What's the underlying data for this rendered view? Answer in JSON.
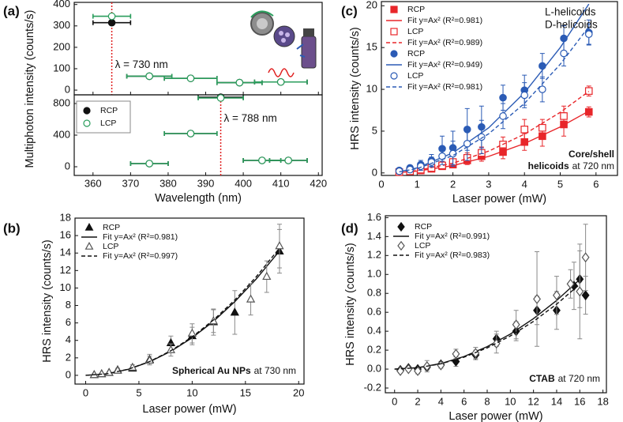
{
  "chart_data": [
    {
      "type": "scatter",
      "panel_label": "(a)",
      "xlabel": "Wavelength (nm)",
      "ylabel": "Multiphoton intensity (counts/s)",
      "xlim": [
        355,
        421
      ],
      "xticks": [
        360,
        370,
        380,
        390,
        400,
        410,
        420
      ],
      "subplots": [
        {
          "ylim": [
            -22,
            410
          ],
          "yticks": [
            0,
            100,
            200,
            300,
            400
          ],
          "annotation": {
            "text": "λ = 730 nm",
            "x": 365,
            "color": "#e02020"
          },
          "series": [
            {
              "color": "#111111",
              "marker": "circle",
              "filled": true,
              "x": [
                365,
                375,
                386,
                399,
                410
              ],
              "values": [
                315,
                65,
                55,
                35,
                38
              ],
              "xerr": [
                5,
                6,
                7,
                6,
                7
              ]
            },
            {
              "color": "#2a9d5c",
              "marker": "circle",
              "filled": false,
              "x": [
                365,
                375,
                386,
                399,
                410
              ],
              "values": [
                345,
                65,
                55,
                35,
                38
              ],
              "xerr": [
                5,
                6,
                7,
                6,
                7
              ]
            }
          ]
        },
        {
          "ylim": [
            -110,
            910
          ],
          "yticks": [
            0,
            400,
            800
          ],
          "legend": "upper left",
          "legend_frame": true,
          "annotation": {
            "text": "λ = 788 nm",
            "x": 394,
            "color": "#e02020"
          },
          "series": [
            {
              "name": "RCP",
              "color": "#111111",
              "marker": "circle",
              "filled": true,
              "x": [
                375,
                386,
                394,
                405,
                412
              ],
              "values": [
                40,
                420,
                880,
                80,
                80
              ],
              "xerr": [
                5,
                7,
                6,
                5,
                5
              ]
            },
            {
              "name": "LCP",
              "color": "#2a9d5c",
              "marker": "circle",
              "filled": false,
              "x": [
                375,
                386,
                394,
                405,
                412
              ],
              "values": [
                40,
                420,
                870,
                80,
                80
              ],
              "xerr": [
                5,
                7,
                6,
                5,
                5
              ]
            }
          ]
        }
      ]
    },
    {
      "type": "scatter",
      "panel_label": "(b)",
      "xlabel": "Laser power (mW)",
      "ylabel": "HRS intensity (counts/s)",
      "xlim": [
        -1,
        20.5
      ],
      "xticks": [
        0,
        5,
        10,
        15,
        20
      ],
      "ylim": [
        -1,
        18
      ],
      "yticks": [
        0,
        2,
        4,
        6,
        8,
        10,
        12,
        14,
        16,
        18
      ],
      "legend": "upper left",
      "errorbar_color": "#8a8a8a",
      "notes": [
        [
          {
            "text": "Spherical Au NPs",
            "bold": true
          },
          {
            "text": "at 730 nm"
          }
        ]
      ],
      "series": [
        {
          "name": "RCP",
          "color": "#111111",
          "marker": "triangle",
          "filled": true,
          "x": [
            0.8,
            1.5,
            2.2,
            3,
            4.4,
            6,
            8,
            10,
            12,
            14,
            18.2
          ],
          "values": [
            0.05,
            0.15,
            0.3,
            0.6,
            0.8,
            1.8,
            3.7,
            4.5,
            6.1,
            7.2,
            14.2
          ],
          "errors": [
            0.1,
            0.1,
            0.1,
            0.2,
            0.2,
            0.6,
            0.8,
            1,
            1.5,
            2.5,
            2.5
          ]
        },
        {
          "name": "Fit y=Ax² (R²=0.981)",
          "color": "#111111",
          "line": "solid",
          "x": [
            0,
            2,
            4,
            6,
            8,
            10,
            12,
            14,
            16,
            18.2
          ],
          "values": [
            0,
            0.17,
            0.69,
            1.55,
            2.75,
            4.3,
            6.19,
            8.43,
            11.01,
            14.24
          ]
        },
        {
          "name": "LCP",
          "color": "#555555",
          "marker": "triangle",
          "filled": false,
          "x": [
            0.8,
            1.5,
            2.2,
            3,
            4.4,
            6,
            8,
            10,
            12,
            15.5,
            17,
            18.2
          ],
          "values": [
            0.05,
            0.15,
            0.3,
            0.55,
            0.9,
            1.7,
            2.9,
            4.8,
            6.2,
            8.7,
            11.3,
            14.8
          ],
          "errors": [
            0.1,
            0.1,
            0.1,
            0.2,
            0.3,
            0.5,
            0.7,
            1.1,
            1.3,
            1.8,
            1.8,
            2.5
          ]
        },
        {
          "name": "Fit y=Ax² (R²=0.997)",
          "color": "#111111",
          "line": "dashed",
          "x": [
            0,
            2,
            4,
            6,
            8,
            10,
            12,
            14,
            16,
            18.2
          ],
          "values": [
            0,
            0.18,
            0.7,
            1.58,
            2.82,
            4.4,
            6.34,
            8.62,
            11.26,
            14.57
          ]
        }
      ]
    },
    {
      "type": "scatter",
      "panel_label": "(c)",
      "xlabel": "Laser power (mW)",
      "ylabel": "HRS intensity (counts/s)",
      "xlim": [
        0,
        6.6
      ],
      "xticks": [
        0,
        1,
        2,
        3,
        4,
        5,
        6
      ],
      "ylim": [
        -0.3,
        20.5
      ],
      "yticks": [
        0,
        5,
        10,
        15,
        20
      ],
      "legend": "upper left",
      "annotations": [
        {
          "text": "L-helicoids",
          "color": "#e8262a"
        },
        {
          "text": "D-helicoids",
          "color": "#2b5bb5"
        }
      ],
      "notes": [
        [
          {
            "text": "Core/shell",
            "bold": true
          }
        ],
        [
          {
            "text": "helicoids",
            "bold": true
          },
          {
            "text": "at 720 nm"
          }
        ]
      ],
      "series": [
        {
          "name": "RCP",
          "color": "#e8262a",
          "marker": "square",
          "filled": true,
          "x": [
            0.5,
            0.8,
            1.1,
            1.4,
            1.7,
            2.0,
            2.4,
            2.8,
            3.4,
            4.0,
            4.5,
            5.1,
            5.8
          ],
          "values": [
            0.1,
            0.2,
            0.3,
            0.5,
            0.8,
            1.0,
            1.5,
            2.0,
            2.5,
            3.7,
            4.4,
            5.8,
            7.3
          ],
          "errors": [
            0.1,
            0.1,
            0.2,
            0.2,
            0.3,
            0.4,
            0.5,
            0.6,
            0.8,
            1.0,
            1.2,
            1.4,
            0.6
          ]
        },
        {
          "name": "Fit y=Ax² (R²=0.981)",
          "color": "#e8262a",
          "line": "solid",
          "x": [
            0.5,
            1,
            2,
            3,
            4,
            5,
            5.8
          ],
          "values": [
            0.055,
            0.22,
            0.88,
            1.98,
            3.52,
            5.5,
            7.4
          ]
        },
        {
          "name": "LCP",
          "color": "#e8262a",
          "marker": "square",
          "filled": false,
          "x": [
            0.5,
            0.8,
            1.1,
            1.4,
            1.7,
            2.0,
            2.4,
            2.8,
            3.4,
            4.0,
            4.5,
            5.1,
            5.8
          ],
          "values": [
            0.1,
            0.2,
            0.4,
            0.6,
            0.9,
            1.3,
            1.8,
            2.4,
            3.4,
            5.2,
            5.4,
            6.8,
            9.8
          ],
          "errors": [
            0.1,
            0.1,
            0.2,
            0.2,
            0.3,
            0.4,
            0.6,
            0.7,
            0.9,
            1.2,
            1.0,
            1.2,
            0.6
          ]
        },
        {
          "name": "Fit y=Ax² (R²=0.989)",
          "color": "#e8262a",
          "line": "dashed",
          "x": [
            0.5,
            1,
            2,
            3,
            4,
            5,
            5.8
          ],
          "values": [
            0.07,
            0.29,
            1.16,
            2.61,
            4.64,
            7.25,
            9.76
          ]
        },
        {
          "name": "RCP",
          "color": "#2b5bb5",
          "marker": "circle",
          "filled": true,
          "x": [
            0.5,
            0.8,
            1.1,
            1.4,
            1.7,
            2.0,
            2.4,
            2.8,
            3.4,
            4.0,
            4.5,
            5.1,
            5.8
          ],
          "values": [
            0.3,
            0.6,
            1.0,
            1.5,
            2.9,
            3.0,
            5.2,
            5.5,
            9.0,
            9.9,
            12.8,
            16.1,
            16.8
          ],
          "errors": [
            0.2,
            0.3,
            0.5,
            0.7,
            1.5,
            2,
            2.5,
            2.5,
            1.5,
            1.8,
            1.5,
            1.5,
            1.5
          ]
        },
        {
          "name": "Fit y=Ax² (R²=0.949)",
          "color": "#2b5bb5",
          "line": "solid",
          "x": [
            0.5,
            1,
            2,
            3,
            4,
            5,
            5.8
          ],
          "values": [
            0.15,
            0.6,
            2.4,
            5.4,
            9.6,
            15,
            20.2
          ]
        },
        {
          "name": "LCP",
          "color": "#2b5bb5",
          "marker": "circle",
          "filled": false,
          "x": [
            0.5,
            0.8,
            1.1,
            1.4,
            1.7,
            2.0,
            2.4,
            2.8,
            3.4,
            4.0,
            4.5,
            5.1,
            5.8
          ],
          "values": [
            0.2,
            0.4,
            0.8,
            1.3,
            2.0,
            2.3,
            3.5,
            4.3,
            6.8,
            9.3,
            10.0,
            14.3,
            16.6
          ],
          "errors": [
            0.2,
            0.3,
            0.5,
            0.6,
            1.0,
            1.5,
            2,
            2,
            1.5,
            1.5,
            1.5,
            1.5,
            1.2
          ]
        },
        {
          "name": "Fit y=Ax² (R²=0.981)",
          "color": "#2b5bb5",
          "line": "dashed",
          "x": [
            0.5,
            1,
            2,
            3,
            4,
            5,
            5.8
          ],
          "values": [
            0.13,
            0.52,
            2.08,
            4.68,
            8.32,
            13,
            17.5
          ]
        }
      ]
    },
    {
      "type": "scatter",
      "panel_label": "(d)",
      "xlabel": "Laser power (mW)",
      "ylabel": "HRS intensity (counts/s)",
      "xlim": [
        -0.8,
        18.3
      ],
      "xticks": [
        0,
        2,
        4,
        6,
        8,
        10,
        12,
        14,
        16,
        18
      ],
      "ylim": [
        -0.25,
        1.62
      ],
      "yticks": [
        -0.2,
        {
          "value": 0,
          "label": "0.0"
        },
        0.2,
        0.4,
        0.6,
        0.8,
        {
          "value": 1,
          "label": "1.0"
        },
        1.2,
        1.4,
        1.6
      ],
      "legend": "upper left",
      "errorbar_color": "#8a8a8a",
      "notes": [
        [
          {
            "text": "CTAB",
            "bold": true
          },
          {
            "text": "at 720 nm"
          }
        ]
      ],
      "series": [
        {
          "name": "RCP",
          "color": "#111111",
          "marker": "diamond",
          "filled": true,
          "x": [
            0.5,
            1.2,
            2,
            2.8,
            4,
            5.3,
            7,
            8.8,
            10.5,
            12.3,
            14,
            15.5,
            16,
            16.5
          ],
          "values": [
            -0.01,
            0.01,
            0.0,
            0.02,
            0.05,
            0.08,
            0.15,
            0.32,
            0.4,
            0.62,
            0.62,
            0.88,
            0.95,
            0.78
          ],
          "errors": [
            0.02,
            0.02,
            0.02,
            0.03,
            0.03,
            0.05,
            0.05,
            0.08,
            0.1,
            0.15,
            0.2,
            0.25,
            0.3,
            0.2
          ]
        },
        {
          "name": "Fit y=Ax² (R²=0.991)",
          "color": "#111111",
          "line": "solid",
          "x": [
            0,
            2,
            4,
            6,
            8,
            10,
            12,
            14,
            16
          ],
          "values": [
            0,
            0.015,
            0.059,
            0.133,
            0.237,
            0.37,
            0.533,
            0.725,
            0.947
          ]
        },
        {
          "name": "LCP",
          "color": "#555555",
          "marker": "diamond",
          "filled": false,
          "x": [
            0.5,
            1.2,
            2,
            2.8,
            4,
            5.3,
            7,
            8.8,
            10.5,
            12.3,
            14,
            15.2,
            16,
            16.5
          ],
          "values": [
            -0.02,
            0.0,
            -0.02,
            0.03,
            0.04,
            0.16,
            0.17,
            0.27,
            0.47,
            0.74,
            0.78,
            0.9,
            0.82,
            1.18
          ],
          "errors": [
            0.02,
            0.02,
            0.03,
            0.06,
            0.03,
            0.05,
            0.06,
            0.1,
            0.15,
            0.5,
            0.2,
            0.15,
            0.5,
            0.35
          ]
        },
        {
          "name": "Fit y=Ax² (R²=0.983)",
          "color": "#111111",
          "line": "dashed",
          "x": [
            0,
            2,
            4,
            6,
            8,
            10,
            12,
            14,
            16
          ],
          "values": [
            0,
            0.014,
            0.056,
            0.126,
            0.224,
            0.35,
            0.504,
            0.686,
            0.896
          ]
        }
      ]
    }
  ]
}
